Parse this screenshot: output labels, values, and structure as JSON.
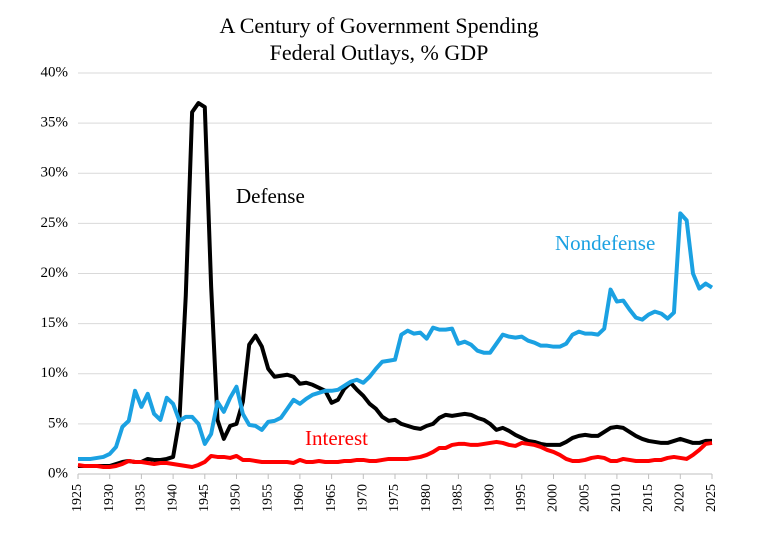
{
  "chart_data": {
    "type": "line",
    "title": "A Century of Government Spending",
    "subtitle": "Federal Outlays, % GDP",
    "x": [
      1925,
      1926,
      1927,
      1928,
      1929,
      1930,
      1931,
      1932,
      1933,
      1934,
      1935,
      1936,
      1937,
      1938,
      1939,
      1940,
      1941,
      1942,
      1943,
      1944,
      1945,
      1946,
      1947,
      1948,
      1949,
      1950,
      1951,
      1952,
      1953,
      1954,
      1955,
      1956,
      1957,
      1958,
      1959,
      1960,
      1961,
      1962,
      1963,
      1964,
      1965,
      1966,
      1967,
      1968,
      1969,
      1970,
      1971,
      1972,
      1973,
      1974,
      1975,
      1976,
      1977,
      1978,
      1979,
      1980,
      1981,
      1982,
      1983,
      1984,
      1985,
      1986,
      1987,
      1988,
      1989,
      1990,
      1991,
      1992,
      1993,
      1994,
      1995,
      1996,
      1997,
      1998,
      1999,
      2000,
      2001,
      2002,
      2003,
      2004,
      2005,
      2006,
      2007,
      2008,
      2009,
      2010,
      2011,
      2012,
      2013,
      2014,
      2015,
      2016,
      2017,
      2018,
      2019,
      2020,
      2021,
      2022,
      2023,
      2024,
      2025
    ],
    "series": [
      {
        "name": "Defense",
        "color": "#000000",
        "values": [
          0.8,
          0.8,
          0.8,
          0.8,
          0.8,
          0.8,
          1.0,
          1.2,
          1.3,
          1.2,
          1.2,
          1.5,
          1.4,
          1.4,
          1.5,
          1.7,
          5.4,
          17.8,
          36.1,
          37.0,
          36.6,
          18.7,
          5.4,
          3.5,
          4.8,
          5.0,
          7.2,
          12.9,
          13.8,
          12.7,
          10.5,
          9.7,
          9.8,
          9.9,
          9.7,
          9.0,
          9.1,
          8.9,
          8.6,
          8.3,
          7.1,
          7.4,
          8.5,
          9.1,
          8.4,
          7.8,
          7.0,
          6.5,
          5.7,
          5.3,
          5.4,
          5.0,
          4.8,
          4.6,
          4.5,
          4.8,
          5.0,
          5.6,
          5.9,
          5.8,
          5.9,
          6.0,
          5.9,
          5.6,
          5.4,
          5.0,
          4.4,
          4.6,
          4.3,
          3.9,
          3.6,
          3.3,
          3.2,
          3.0,
          2.9,
          2.9,
          2.9,
          3.2,
          3.6,
          3.8,
          3.9,
          3.8,
          3.8,
          4.2,
          4.6,
          4.7,
          4.6,
          4.2,
          3.8,
          3.5,
          3.3,
          3.2,
          3.1,
          3.1,
          3.3,
          3.5,
          3.3,
          3.1,
          3.1,
          3.3,
          3.3
        ]
      },
      {
        "name": "Nondefense",
        "color": "#1ba1e2",
        "values": [
          1.5,
          1.5,
          1.5,
          1.6,
          1.7,
          2.0,
          2.7,
          4.7,
          5.3,
          8.3,
          6.7,
          8.0,
          6.0,
          5.4,
          7.6,
          7.0,
          5.3,
          5.7,
          5.7,
          5.0,
          3.0,
          4.0,
          7.2,
          6.2,
          7.6,
          8.7,
          6.0,
          4.9,
          4.8,
          4.4,
          5.2,
          5.3,
          5.6,
          6.5,
          7.4,
          7.0,
          7.5,
          7.9,
          8.1,
          8.3,
          8.3,
          8.4,
          8.8,
          9.2,
          9.4,
          9.1,
          9.7,
          10.5,
          11.2,
          11.3,
          11.4,
          13.9,
          14.3,
          14.0,
          14.1,
          13.5,
          14.6,
          14.4,
          14.4,
          14.5,
          13.0,
          13.2,
          12.9,
          12.3,
          12.1,
          12.1,
          13.0,
          13.9,
          13.7,
          13.6,
          13.7,
          13.3,
          13.1,
          12.8,
          12.8,
          12.7,
          12.7,
          13.0,
          13.9,
          14.2,
          14.0,
          14.0,
          13.9,
          14.5,
          18.4,
          17.2,
          17.3,
          16.4,
          15.6,
          15.4,
          15.9,
          16.2,
          16.0,
          15.5,
          16.1,
          26.0,
          25.3,
          20.0,
          18.5,
          19.0,
          18.6
        ]
      },
      {
        "name": "Interest",
        "color": "#ff0000",
        "values": [
          0.9,
          0.8,
          0.8,
          0.8,
          0.7,
          0.7,
          0.8,
          1.0,
          1.3,
          1.2,
          1.2,
          1.1,
          1.0,
          1.1,
          1.1,
          1.0,
          0.9,
          0.8,
          0.7,
          0.9,
          1.2,
          1.8,
          1.7,
          1.7,
          1.6,
          1.8,
          1.4,
          1.4,
          1.3,
          1.2,
          1.2,
          1.2,
          1.2,
          1.2,
          1.1,
          1.4,
          1.2,
          1.2,
          1.3,
          1.2,
          1.2,
          1.2,
          1.3,
          1.3,
          1.4,
          1.4,
          1.3,
          1.3,
          1.4,
          1.5,
          1.5,
          1.5,
          1.5,
          1.6,
          1.7,
          1.9,
          2.2,
          2.6,
          2.6,
          2.9,
          3.0,
          3.0,
          2.9,
          2.9,
          3.0,
          3.1,
          3.2,
          3.1,
          2.9,
          2.8,
          3.1,
          3.0,
          2.9,
          2.7,
          2.4,
          2.2,
          1.9,
          1.5,
          1.3,
          1.3,
          1.4,
          1.6,
          1.7,
          1.6,
          1.3,
          1.3,
          1.5,
          1.4,
          1.3,
          1.3,
          1.3,
          1.4,
          1.4,
          1.6,
          1.7,
          1.6,
          1.5,
          1.9,
          2.4,
          3.0,
          3.1
        ]
      }
    ],
    "xlim": [
      1925,
      2025
    ],
    "xticks": [
      1925,
      1930,
      1935,
      1940,
      1945,
      1950,
      1955,
      1960,
      1965,
      1970,
      1975,
      1980,
      1985,
      1990,
      1995,
      2000,
      2005,
      2010,
      2015,
      2020,
      2025
    ],
    "ylim": [
      0,
      40
    ],
    "yticks": [
      {
        "value": 0,
        "label": "0%"
      },
      {
        "value": 5,
        "label": "5%"
      },
      {
        "value": 10,
        "label": "10%"
      },
      {
        "value": 15,
        "label": "15%"
      },
      {
        "value": 20,
        "label": "20%"
      },
      {
        "value": 25,
        "label": "25%"
      },
      {
        "value": 30,
        "label": "30%"
      },
      {
        "value": 35,
        "label": "35%"
      },
      {
        "value": 40,
        "label": "40%"
      }
    ],
    "grid": true
  }
}
